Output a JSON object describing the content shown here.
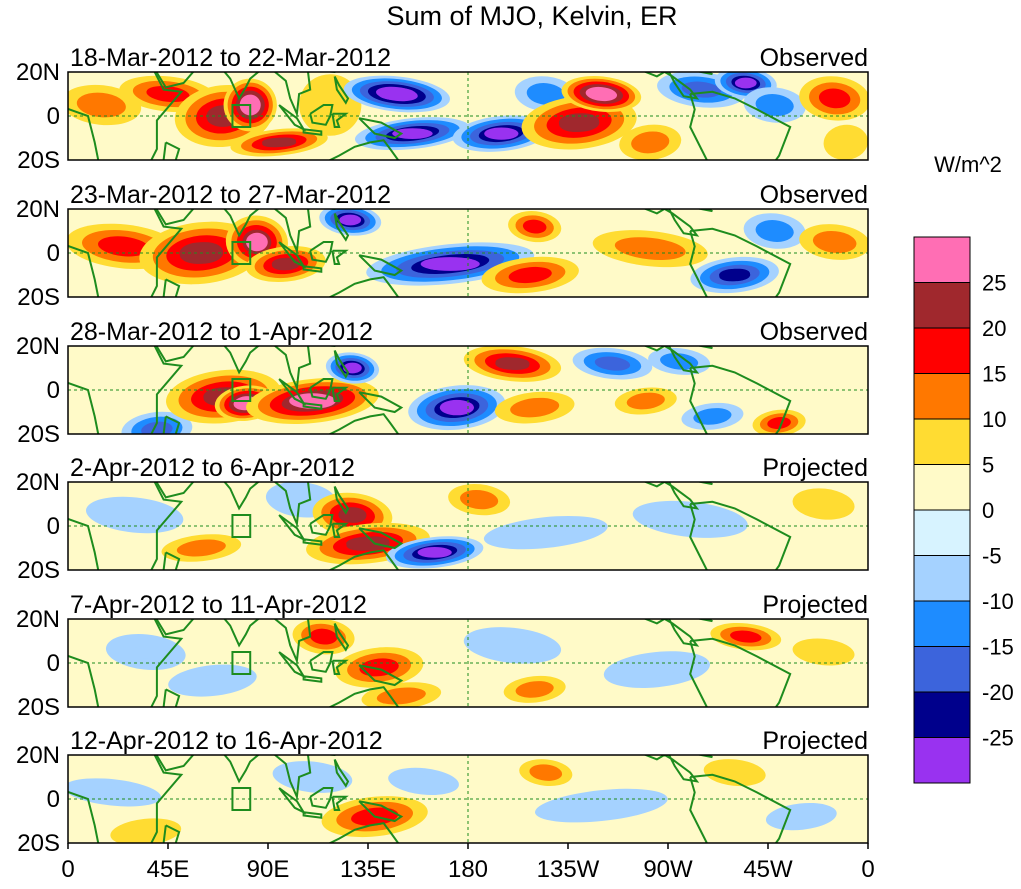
{
  "chart_data": {
    "type": "heatmap",
    "title": "Sum of MJO, Kelvin, ER",
    "units": "W/m^2",
    "xlabels": [
      "0",
      "45E",
      "90E",
      "135E",
      "180",
      "135W",
      "90W",
      "45W",
      "0"
    ],
    "xvalues": [
      0,
      45,
      90,
      135,
      180,
      225,
      270,
      315,
      360
    ],
    "ylabels": [
      "20N",
      "0",
      "20S"
    ],
    "yvalues": [
      20,
      0,
      -20
    ],
    "colorbar": {
      "colors": [
        "#8A2BE2",
        "#1E90FF",
        "#000096",
        "#4169E1",
        "#1E8CFF",
        "#A0D2FF",
        "#D2F0FF",
        "#FFFFC8",
        "#FFE13C",
        "#FF7D00",
        "#FF0000",
        "#A52A2A",
        "#FF69B4"
      ],
      "fill_colors": [
        "#9932F0",
        "#00008C",
        "#3C64DC",
        "#1E8CFF",
        "#A5D2FF",
        "#D7F3FF",
        "#FFFAC8",
        "#FFDC32",
        "#FF7800",
        "#FF0000",
        "#A0282D",
        "#FF6EB4"
      ],
      "levels": [
        "-25",
        "-20",
        "-15",
        "-10",
        "-5",
        "0",
        "5",
        "10",
        "15",
        "20",
        "25"
      ]
    },
    "panels": [
      {
        "date_range": "18-Mar-2012 to 22-Mar-2012",
        "status": "Observed",
        "anomalies": [
          {
            "lon": 15,
            "lat": 5,
            "rlon": 18,
            "rlat": 9,
            "v": 14
          },
          {
            "lon": 45,
            "lat": 10,
            "rlon": 22,
            "rlat": 8,
            "v": 18
          },
          {
            "lon": 70,
            "lat": 0,
            "rlon": 22,
            "rlat": 14,
            "v": 22
          },
          {
            "lon": 82,
            "lat": 5,
            "rlon": 12,
            "rlat": 12,
            "v": 30
          },
          {
            "lon": 95,
            "lat": -12,
            "rlon": 22,
            "rlat": 6,
            "v": 22
          },
          {
            "lon": 118,
            "lat": 5,
            "rlon": 14,
            "rlat": 14,
            "v": 8
          },
          {
            "lon": 148,
            "lat": 10,
            "rlon": 24,
            "rlat": 8,
            "v": -30
          },
          {
            "lon": 155,
            "lat": -8,
            "rlon": 26,
            "rlat": 7,
            "v": -28
          },
          {
            "lon": 195,
            "lat": -8,
            "rlon": 22,
            "rlat": 8,
            "v": -28
          },
          {
            "lon": 215,
            "lat": 10,
            "rlon": 14,
            "rlat": 8,
            "v": -12
          },
          {
            "lon": 230,
            "lat": -3,
            "rlon": 26,
            "rlat": 12,
            "v": 22
          },
          {
            "lon": 240,
            "lat": 10,
            "rlon": 18,
            "rlat": 8,
            "v": 30
          },
          {
            "lon": 262,
            "lat": -12,
            "rlon": 14,
            "rlat": 8,
            "v": 12
          },
          {
            "lon": 285,
            "lat": 12,
            "rlon": 20,
            "rlat": 8,
            "v": -18
          },
          {
            "lon": 305,
            "lat": 15,
            "rlon": 14,
            "rlat": 7,
            "v": -25
          },
          {
            "lon": 318,
            "lat": 5,
            "rlon": 14,
            "rlat": 8,
            "v": -10
          },
          {
            "lon": 345,
            "lat": 8,
            "rlon": 16,
            "rlat": 10,
            "v": 16
          },
          {
            "lon": 350,
            "lat": -12,
            "rlon": 10,
            "rlat": 8,
            "v": 8
          }
        ]
      },
      {
        "date_range": "23-Mar-2012 to 27-Mar-2012",
        "status": "Observed",
        "anomalies": [
          {
            "lon": 25,
            "lat": 3,
            "rlon": 26,
            "rlat": 10,
            "v": 15
          },
          {
            "lon": 60,
            "lat": 0,
            "rlon": 28,
            "rlat": 14,
            "v": 20
          },
          {
            "lon": 85,
            "lat": 5,
            "rlon": 14,
            "rlat": 12,
            "v": 28
          },
          {
            "lon": 98,
            "lat": -5,
            "rlon": 18,
            "rlat": 8,
            "v": 22
          },
          {
            "lon": 127,
            "lat": 15,
            "rlon": 14,
            "rlat": 7,
            "v": -25
          },
          {
            "lon": 172,
            "lat": -5,
            "rlon": 38,
            "rlat": 9,
            "v": -28
          },
          {
            "lon": 208,
            "lat": -10,
            "rlon": 22,
            "rlat": 8,
            "v": 18
          },
          {
            "lon": 210,
            "lat": 12,
            "rlon": 12,
            "rlat": 7,
            "v": 16
          },
          {
            "lon": 262,
            "lat": 2,
            "rlon": 26,
            "rlat": 8,
            "v": 12
          },
          {
            "lon": 300,
            "lat": -10,
            "rlon": 20,
            "rlat": 8,
            "v": -20
          },
          {
            "lon": 318,
            "lat": 10,
            "rlon": 14,
            "rlat": 8,
            "v": -12
          },
          {
            "lon": 345,
            "lat": 5,
            "rlon": 16,
            "rlat": 8,
            "v": 10
          }
        ]
      },
      {
        "date_range": "28-Mar-2012 to 1-Apr-2012",
        "status": "Observed",
        "anomalies": [
          {
            "lon": 40,
            "lat": -18,
            "rlon": 16,
            "rlat": 8,
            "v": -18
          },
          {
            "lon": 70,
            "lat": -3,
            "rlon": 26,
            "rlat": 12,
            "v": 22
          },
          {
            "lon": 80,
            "lat": -6,
            "rlon": 14,
            "rlat": 8,
            "v": 30
          },
          {
            "lon": 110,
            "lat": -5,
            "rlon": 30,
            "rlat": 10,
            "v": 26
          },
          {
            "lon": 128,
            "lat": 10,
            "rlon": 12,
            "rlat": 7,
            "v": -25
          },
          {
            "lon": 175,
            "lat": -8,
            "rlon": 22,
            "rlat": 10,
            "v": -28
          },
          {
            "lon": 200,
            "lat": 12,
            "rlon": 22,
            "rlat": 8,
            "v": 20
          },
          {
            "lon": 210,
            "lat": -8,
            "rlon": 18,
            "rlat": 7,
            "v": 14
          },
          {
            "lon": 245,
            "lat": 12,
            "rlon": 18,
            "rlat": 7,
            "v": -15
          },
          {
            "lon": 260,
            "lat": -5,
            "rlon": 14,
            "rlat": 6,
            "v": 12
          },
          {
            "lon": 275,
            "lat": 13,
            "rlon": 14,
            "rlat": 6,
            "v": -12
          },
          {
            "lon": 290,
            "lat": -12,
            "rlon": 14,
            "rlat": 6,
            "v": -10
          },
          {
            "lon": 320,
            "lat": -15,
            "rlon": 12,
            "rlat": 6,
            "v": 15
          }
        ]
      },
      {
        "date_range": "2-Apr-2012 to 6-Apr-2012",
        "status": "Projected",
        "anomalies": [
          {
            "lon": 30,
            "lat": 5,
            "rlon": 22,
            "rlat": 8,
            "v": -6
          },
          {
            "lon": 60,
            "lat": -10,
            "rlon": 18,
            "rlat": 6,
            "v": 10
          },
          {
            "lon": 105,
            "lat": 12,
            "rlon": 16,
            "rlat": 8,
            "v": -8
          },
          {
            "lon": 128,
            "lat": 5,
            "rlon": 18,
            "rlat": 10,
            "v": 20
          },
          {
            "lon": 135,
            "lat": -8,
            "rlon": 28,
            "rlat": 9,
            "v": 22
          },
          {
            "lon": 165,
            "lat": -12,
            "rlon": 22,
            "rlat": 7,
            "v": -25
          },
          {
            "lon": 185,
            "lat": 12,
            "rlon": 14,
            "rlat": 7,
            "v": 10
          },
          {
            "lon": 215,
            "lat": -3,
            "rlon": 28,
            "rlat": 7,
            "v": -6
          },
          {
            "lon": 280,
            "lat": 3,
            "rlon": 26,
            "rlat": 8,
            "v": -6
          },
          {
            "lon": 340,
            "lat": 10,
            "rlon": 14,
            "rlat": 7,
            "v": 5
          }
        ]
      },
      {
        "date_range": "7-Apr-2012 to 11-Apr-2012",
        "status": "Projected",
        "anomalies": [
          {
            "lon": 35,
            "lat": 5,
            "rlon": 18,
            "rlat": 8,
            "v": -6
          },
          {
            "lon": 65,
            "lat": -8,
            "rlon": 20,
            "rlat": 7,
            "v": -6
          },
          {
            "lon": 115,
            "lat": 12,
            "rlon": 14,
            "rlat": 8,
            "v": 18
          },
          {
            "lon": 140,
            "lat": -2,
            "rlon": 20,
            "rlat": 9,
            "v": 15
          },
          {
            "lon": 150,
            "lat": -15,
            "rlon": 18,
            "rlat": 6,
            "v": 10
          },
          {
            "lon": 200,
            "lat": 8,
            "rlon": 22,
            "rlat": 8,
            "v": -7
          },
          {
            "lon": 210,
            "lat": -12,
            "rlon": 14,
            "rlat": 6,
            "v": 10
          },
          {
            "lon": 265,
            "lat": -3,
            "rlon": 24,
            "rlat": 8,
            "v": -7
          },
          {
            "lon": 305,
            "lat": 12,
            "rlon": 16,
            "rlat": 6,
            "v": 15
          },
          {
            "lon": 340,
            "lat": 5,
            "rlon": 14,
            "rlat": 6,
            "v": 5
          }
        ]
      },
      {
        "date_range": "12-Apr-2012 to 16-Apr-2012",
        "status": "Projected",
        "anomalies": [
          {
            "lon": 20,
            "lat": 3,
            "rlon": 22,
            "rlat": 6,
            "v": -6
          },
          {
            "lon": 35,
            "lat": -15,
            "rlon": 16,
            "rlat": 6,
            "v": 8
          },
          {
            "lon": 110,
            "lat": 10,
            "rlon": 18,
            "rlat": 7,
            "v": -5
          },
          {
            "lon": 138,
            "lat": -8,
            "rlon": 24,
            "rlat": 9,
            "v": 15
          },
          {
            "lon": 160,
            "lat": 8,
            "rlon": 16,
            "rlat": 6,
            "v": -7
          },
          {
            "lon": 215,
            "lat": 12,
            "rlon": 12,
            "rlat": 6,
            "v": 10
          },
          {
            "lon": 240,
            "lat": -3,
            "rlon": 30,
            "rlat": 7,
            "v": -6
          },
          {
            "lon": 300,
            "lat": 12,
            "rlon": 14,
            "rlat": 6,
            "v": 6
          },
          {
            "lon": 330,
            "lat": -8,
            "rlon": 16,
            "rlat": 6,
            "v": -5
          }
        ]
      }
    ]
  }
}
